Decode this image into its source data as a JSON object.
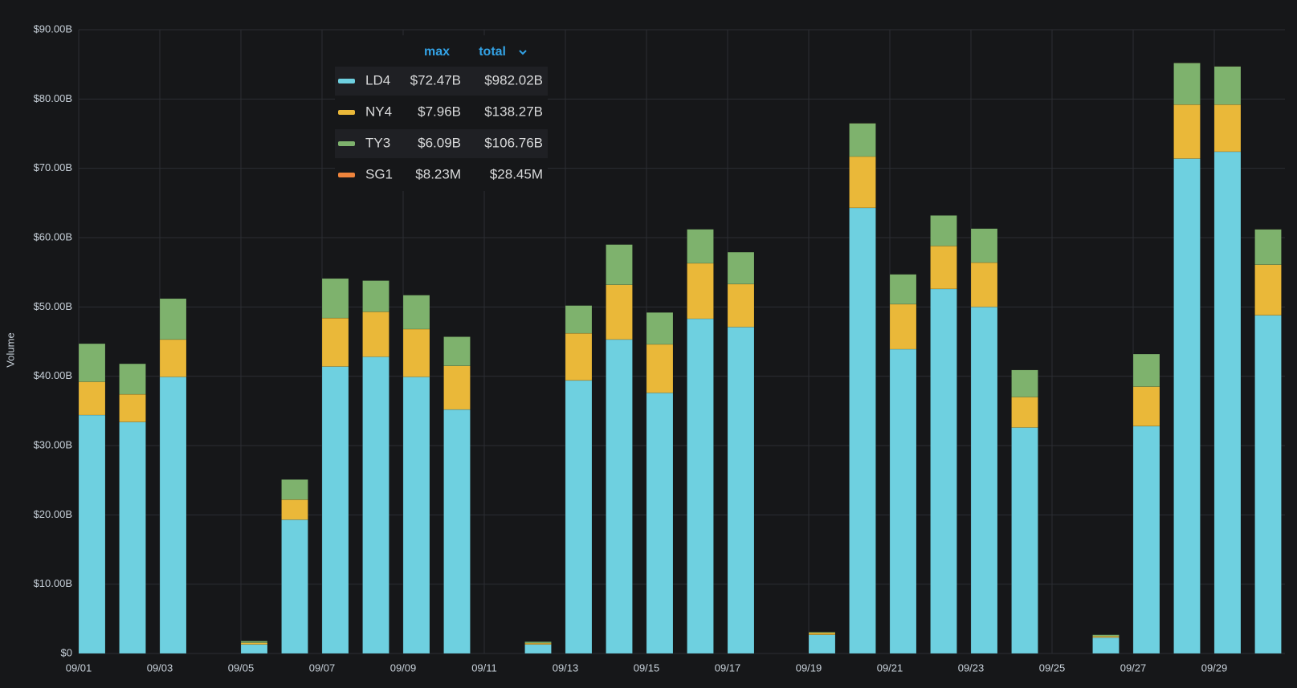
{
  "chart_data": {
    "type": "stacked_bar",
    "y_label": "Volume",
    "categories": [
      "09/01",
      null,
      "09/03",
      null,
      "09/05",
      null,
      "09/07",
      null,
      "09/09",
      null,
      "09/11",
      null,
      "09/13",
      null,
      "09/15",
      null,
      "09/17",
      null,
      "09/19",
      null,
      "09/21",
      null,
      "09/23",
      null,
      "09/25",
      null,
      "09/27",
      null,
      "09/29",
      null
    ],
    "series": [
      {
        "name": "LD4",
        "color": "#6ed0e0",
        "stats": [
          "$72.47B",
          "$982.02B"
        ],
        "values": [
          34.4,
          33.4,
          39.9,
          0,
          1.3,
          19.3,
          41.4,
          42.8,
          39.9,
          35.2,
          0,
          1.3,
          39.4,
          45.3,
          37.6,
          48.3,
          47.1,
          0,
          2.7,
          64.3,
          43.9,
          52.6,
          50.0,
          32.6,
          0,
          2.3,
          32.8,
          71.4,
          72.4,
          48.8
        ]
      },
      {
        "name": "NY4",
        "color": "#eab839",
        "stats": [
          "$7.96B",
          "$138.27B"
        ],
        "values": [
          4.8,
          4.0,
          5.4,
          0,
          0.25,
          2.9,
          7.0,
          6.5,
          6.9,
          6.3,
          0,
          0.2,
          6.8,
          7.9,
          7.0,
          8.0,
          6.2,
          0,
          0.3,
          7.4,
          6.5,
          6.2,
          6.4,
          4.4,
          0,
          0.2,
          5.7,
          7.8,
          6.8,
          7.3
        ]
      },
      {
        "name": "TY3",
        "color": "#7eb26d",
        "stats": [
          "$6.09B",
          "$106.76B"
        ],
        "values": [
          5.5,
          4.4,
          5.9,
          0,
          0.25,
          2.9,
          5.7,
          4.5,
          4.9,
          4.2,
          0,
          0.2,
          4.0,
          5.8,
          4.6,
          4.9,
          4.6,
          0,
          0.1,
          4.8,
          4.3,
          4.4,
          4.9,
          3.9,
          0,
          0.2,
          4.7,
          6.0,
          5.5,
          5.1
        ]
      },
      {
        "name": "SG1",
        "color": "#ef843c",
        "stats": [
          "$8.23M",
          "$28.45M"
        ],
        "values": [
          0,
          0,
          0,
          0,
          0,
          0,
          0,
          0,
          0,
          0,
          0,
          0,
          0,
          0,
          0,
          0,
          0,
          0,
          0,
          0.008,
          0,
          0,
          0,
          0,
          0,
          0,
          0,
          0.008,
          0.008,
          0.004
        ]
      }
    ],
    "legend_columns": [
      "max",
      "total"
    ],
    "ylim": [
      0,
      90
    ],
    "yticks": [
      {
        "value": 0,
        "label": "$0"
      },
      {
        "value": 10,
        "label": "$10.00B"
      },
      {
        "value": 20,
        "label": "$20.00B"
      },
      {
        "value": 30,
        "label": "$30.00B"
      },
      {
        "value": 40,
        "label": "$40.00B"
      },
      {
        "value": 50,
        "label": "$50.00B"
      },
      {
        "value": 60,
        "label": "$60.00B"
      },
      {
        "value": 70,
        "label": "$70.00B"
      },
      {
        "value": 80,
        "label": "$80.00B"
      },
      {
        "value": 90,
        "label": "$90.00B"
      }
    ],
    "grid": true
  }
}
